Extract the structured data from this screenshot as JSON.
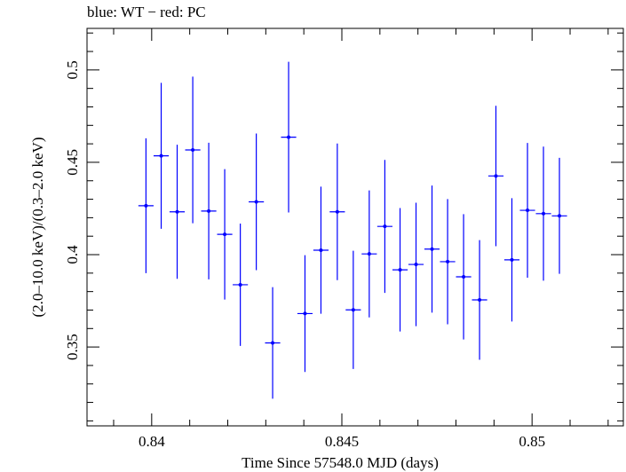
{
  "chart_data": {
    "type": "scatter",
    "title": "blue: WT − red: PC",
    "xlabel": "Time Since 57548.0 MJD (days)",
    "ylabel": "(2.0–10.0 keV)/(0.3–2.0 keV)",
    "xlim": [
      0.8383,
      0.8524
    ],
    "ylim": [
      0.3073,
      0.5225
    ],
    "x_ticks": [
      0.84,
      0.845,
      0.85
    ],
    "x_tick_labels": [
      "0.84",
      "0.845",
      "0.85"
    ],
    "y_ticks": [
      0.35,
      0.4,
      0.45,
      0.5
    ],
    "y_tick_labels": [
      "0.35",
      "0.4",
      "0.45",
      "0.5"
    ],
    "grid": false,
    "series": [
      {
        "color": "#0000ff",
        "points": [
          {
            "x": 0.83985,
            "xerr": 0.0002,
            "y": 0.4265,
            "yerr": 0.0365
          },
          {
            "x": 0.84025,
            "xerr": 0.0002,
            "y": 0.4535,
            "yerr": 0.0395
          },
          {
            "x": 0.84067,
            "xerr": 0.0002,
            "y": 0.4232,
            "yerr": 0.0363
          },
          {
            "x": 0.84108,
            "xerr": 0.0002,
            "y": 0.4567,
            "yerr": 0.0397
          },
          {
            "x": 0.8415,
            "xerr": 0.0002,
            "y": 0.4236,
            "yerr": 0.037
          },
          {
            "x": 0.84192,
            "xerr": 0.0002,
            "y": 0.411,
            "yerr": 0.0353
          },
          {
            "x": 0.84233,
            "xerr": 0.0002,
            "y": 0.3837,
            "yerr": 0.0331
          },
          {
            "x": 0.84275,
            "xerr": 0.0002,
            "y": 0.4286,
            "yerr": 0.037
          },
          {
            "x": 0.84318,
            "xerr": 0.0002,
            "y": 0.3522,
            "yerr": 0.0302
          },
          {
            "x": 0.8436,
            "xerr": 0.0002,
            "y": 0.4636,
            "yerr": 0.0408
          },
          {
            "x": 0.84403,
            "xerr": 0.0002,
            "y": 0.3681,
            "yerr": 0.0316
          },
          {
            "x": 0.84445,
            "xerr": 0.0002,
            "y": 0.4024,
            "yerr": 0.0344
          },
          {
            "x": 0.84488,
            "xerr": 0.0002,
            "y": 0.4232,
            "yerr": 0.037
          },
          {
            "x": 0.8453,
            "xerr": 0.0002,
            "y": 0.3701,
            "yerr": 0.032
          },
          {
            "x": 0.84572,
            "xerr": 0.0002,
            "y": 0.4004,
            "yerr": 0.0344
          },
          {
            "x": 0.84613,
            "xerr": 0.0002,
            "y": 0.4153,
            "yerr": 0.036
          },
          {
            "x": 0.84653,
            "xerr": 0.0002,
            "y": 0.3918,
            "yerr": 0.0334
          },
          {
            "x": 0.84695,
            "xerr": 0.0002,
            "y": 0.3947,
            "yerr": 0.0334
          },
          {
            "x": 0.84737,
            "xerr": 0.0002,
            "y": 0.403,
            "yerr": 0.0344
          },
          {
            "x": 0.84778,
            "xerr": 0.0002,
            "y": 0.3962,
            "yerr": 0.0339
          },
          {
            "x": 0.8482,
            "xerr": 0.0002,
            "y": 0.388,
            "yerr": 0.0339
          },
          {
            "x": 0.84862,
            "xerr": 0.0002,
            "y": 0.3755,
            "yerr": 0.0324
          },
          {
            "x": 0.84905,
            "xerr": 0.0002,
            "y": 0.4426,
            "yerr": 0.038
          },
          {
            "x": 0.84947,
            "xerr": 0.0002,
            "y": 0.3972,
            "yerr": 0.0334
          },
          {
            "x": 0.84988,
            "xerr": 0.0002,
            "y": 0.424,
            "yerr": 0.0365
          },
          {
            "x": 0.8503,
            "xerr": 0.0002,
            "y": 0.4222,
            "yerr": 0.0363
          },
          {
            "x": 0.85072,
            "xerr": 0.0002,
            "y": 0.421,
            "yerr": 0.0314
          }
        ]
      }
    ]
  }
}
